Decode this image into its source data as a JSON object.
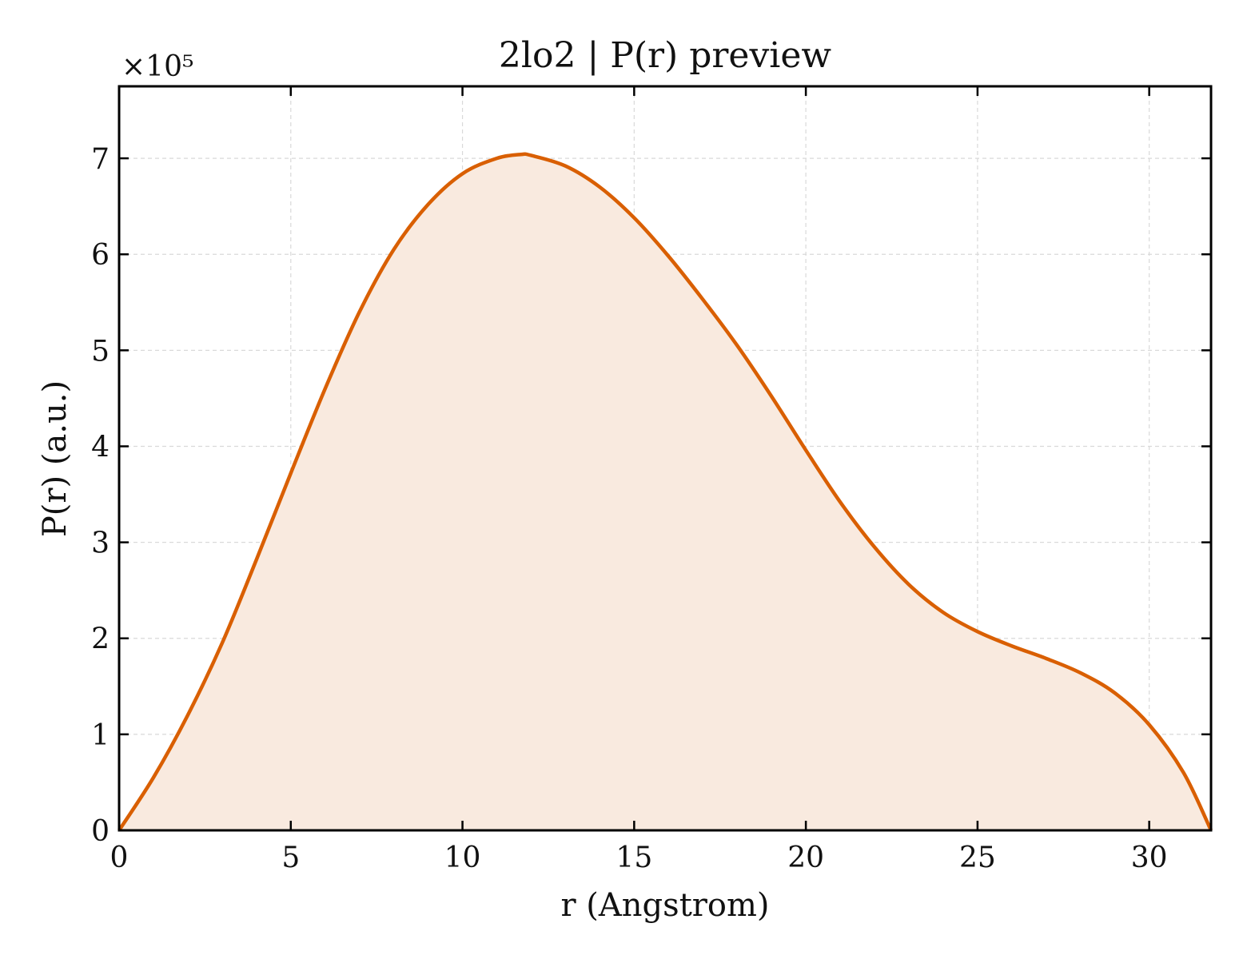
{
  "chart_data": {
    "type": "area",
    "title": "2lo2 | P(r) preview",
    "xlabel": "r (Angstrom)",
    "ylabel": "P(r) (a.u.)",
    "y_multiplier": "×10⁵",
    "xlim": [
      0,
      31.8
    ],
    "ylim": [
      0,
      7.75
    ],
    "xticks": [
      0,
      5,
      10,
      15,
      20,
      25,
      30
    ],
    "yticks": [
      0,
      1,
      2,
      3,
      4,
      5,
      6,
      7
    ],
    "grid": true,
    "line_color": "#d95f02",
    "fill_color": "#f9eadf",
    "series": [
      {
        "x": [
          0,
          1,
          2,
          3,
          4,
          5,
          6,
          7,
          8,
          9,
          10,
          11,
          11.7,
          12,
          13,
          14,
          15,
          16,
          17,
          18,
          19,
          20,
          21,
          22,
          23,
          24,
          25,
          26,
          27,
          28,
          29,
          30,
          31,
          31.8
        ],
        "y": [
          0,
          0.55,
          1.2,
          1.95,
          2.82,
          3.72,
          4.6,
          5.4,
          6.05,
          6.52,
          6.84,
          7.0,
          7.04,
          7.03,
          6.92,
          6.7,
          6.38,
          5.98,
          5.53,
          5.05,
          4.52,
          3.96,
          3.42,
          2.95,
          2.56,
          2.27,
          2.07,
          1.92,
          1.79,
          1.64,
          1.43,
          1.1,
          0.6,
          0.0
        ]
      }
    ]
  }
}
